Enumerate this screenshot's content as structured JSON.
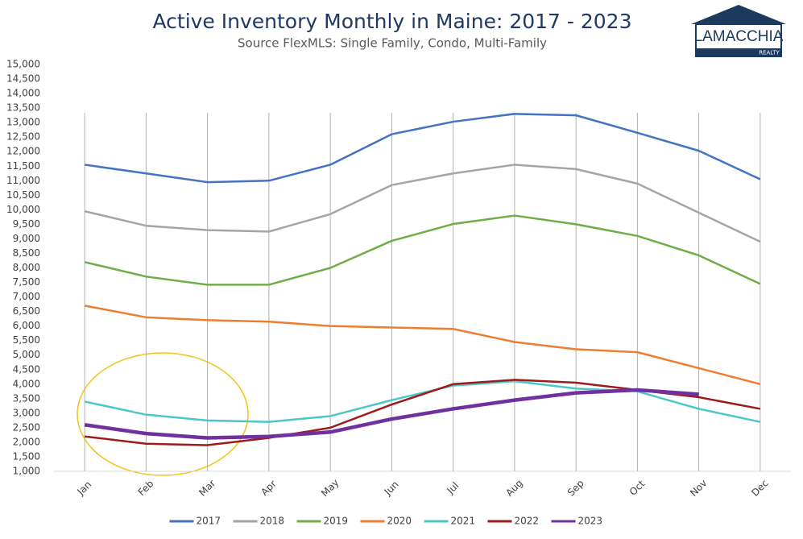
{
  "chart_data": {
    "type": "line",
    "title": "Active Inventory Monthly in Maine: 2017 - 2023",
    "subtitle": "Source FlexMLS: Single Family, Condo, Multi-Family",
    "logo": {
      "name": "LAMACCHIA",
      "tagline": "REALTY"
    },
    "categories": [
      "Jan",
      "Feb",
      "Mar",
      "Apr",
      "May",
      "Jun",
      "Jul",
      "Aug",
      "Sep",
      "Oct",
      "Nov",
      "Dec"
    ],
    "series": [
      {
        "name": "2017",
        "color": "#4472c4",
        "values": [
          11550,
          11250,
          10950,
          11000,
          11550,
          12600,
          13030,
          13300,
          13250,
          12650,
          12030,
          11050
        ]
      },
      {
        "name": "2018",
        "color": "#a5a5a5",
        "values": [
          9950,
          9450,
          9300,
          9250,
          9850,
          10850,
          11250,
          11550,
          11400,
          10900,
          9900,
          8900
        ]
      },
      {
        "name": "2019",
        "color": "#70ad47",
        "values": [
          8200,
          7700,
          7420,
          7420,
          8000,
          8930,
          9510,
          9800,
          9500,
          9100,
          8430,
          7450
        ]
      },
      {
        "name": "2020",
        "color": "#ed7d31",
        "values": [
          6700,
          6300,
          6200,
          6150,
          6000,
          5950,
          5900,
          5450,
          5200,
          5100,
          4550,
          4000
        ]
      },
      {
        "name": "2021",
        "color": "#4bc7c7",
        "values": [
          3400,
          2950,
          2750,
          2700,
          2900,
          3450,
          3950,
          4100,
          3850,
          3750,
          3150,
          2700
        ]
      },
      {
        "name": "2022",
        "color": "#9e1b1b",
        "values": [
          2200,
          1950,
          1900,
          2150,
          2500,
          3300,
          4000,
          4150,
          4050,
          3800,
          3550,
          3150
        ]
      },
      {
        "name": "2023",
        "color": "#7030a0",
        "values": [
          2600,
          2300,
          2150,
          2200,
          2350,
          2800,
          3150,
          3450,
          3700,
          3800,
          3650,
          null
        ]
      }
    ],
    "ylim": [
      1000,
      15000
    ],
    "yticks": [
      {
        "value": 1000,
        "label": "1,000"
      },
      {
        "value": 1500,
        "label": "1,500"
      },
      {
        "value": 2000,
        "label": "2,000"
      },
      {
        "value": 2500,
        "label": "2,500"
      },
      {
        "value": 3000,
        "label": "3,000"
      },
      {
        "value": 3500,
        "label": "3,500"
      },
      {
        "value": 4000,
        "label": "4,000"
      },
      {
        "value": 4500,
        "label": "4,500"
      },
      {
        "value": 5000,
        "label": "5,000"
      },
      {
        "value": 5500,
        "label": "5,500"
      },
      {
        "value": 6000,
        "label": "6,000"
      },
      {
        "value": 6500,
        "label": "6,500"
      },
      {
        "value": 7000,
        "label": "7,000"
      },
      {
        "value": 7500,
        "label": "7,500"
      },
      {
        "value": 8000,
        "label": "8,000"
      },
      {
        "value": 8500,
        "label": "8,500"
      },
      {
        "value": 9000,
        "label": "9,000"
      },
      {
        "value": 9500,
        "label": "9,500"
      },
      {
        "value": 10000,
        "label": "10,000"
      },
      {
        "value": 10500,
        "label": "10,500"
      },
      {
        "value": 11000,
        "label": "11,000"
      },
      {
        "value": 11500,
        "label": "11,500"
      },
      {
        "value": 12000,
        "label": "12,000"
      },
      {
        "value": 12500,
        "label": "12,500"
      },
      {
        "value": 13000,
        "label": "13,000"
      },
      {
        "value": 13500,
        "label": "13,500"
      },
      {
        "value": 14000,
        "label": "14,000"
      },
      {
        "value": 14500,
        "label": "14,500"
      },
      {
        "value": 15000,
        "label": "15,000"
      }
    ],
    "grid": "x",
    "legend": "bottom"
  }
}
